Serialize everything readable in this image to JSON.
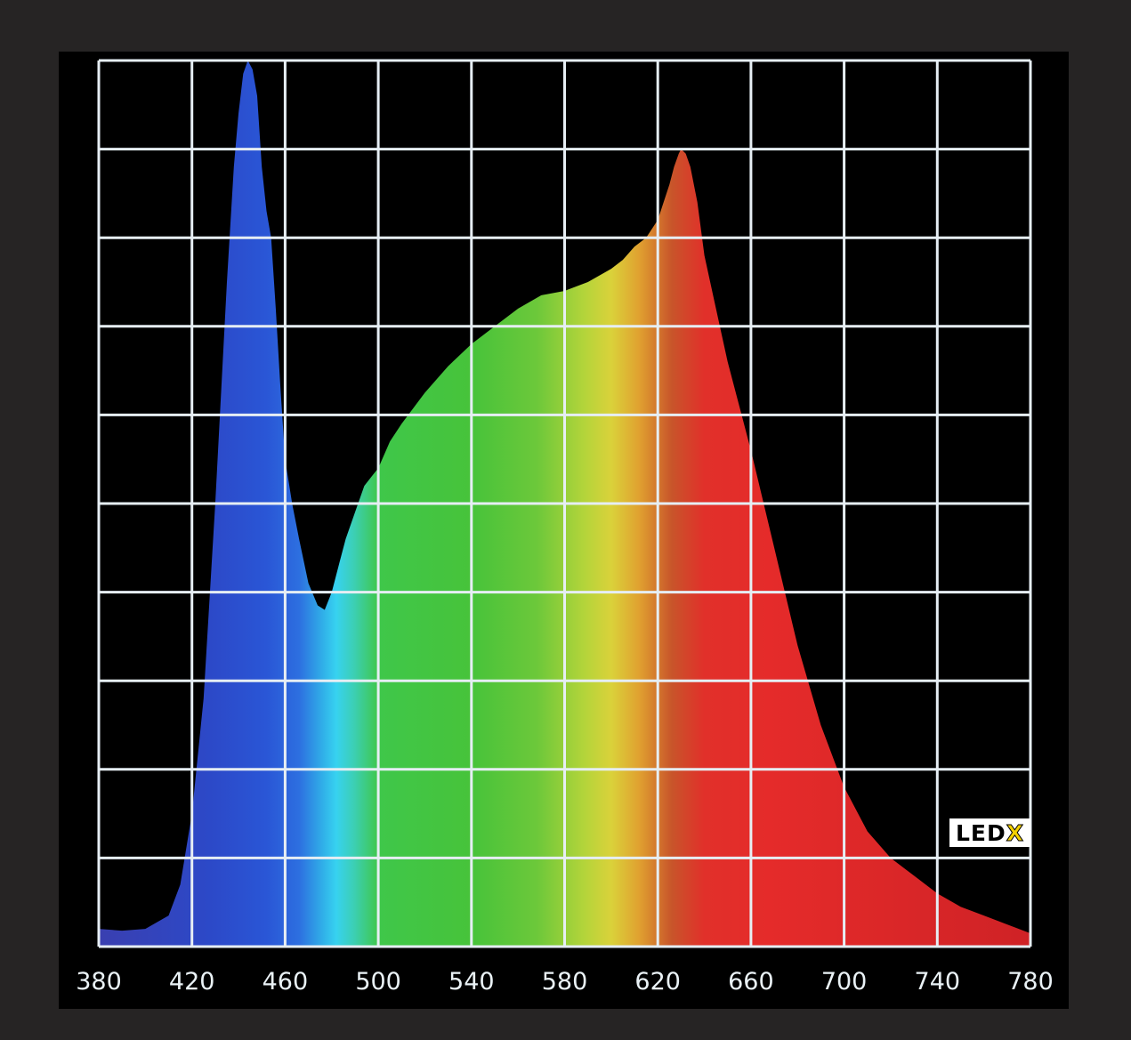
{
  "chart_data": {
    "type": "area",
    "title": "",
    "xlabel": "",
    "ylabel": "",
    "xlim": [
      380,
      780
    ],
    "ylim": [
      0,
      1
    ],
    "x_ticks": [
      "380",
      "420",
      "460",
      "500",
      "540",
      "580",
      "620",
      "660",
      "700",
      "740",
      "780"
    ],
    "grid": true,
    "y_gridlines": 10,
    "fill": "visible-spectrum gradient by wavelength",
    "series": [
      {
        "x": [
          380,
          390,
          400,
          410,
          415,
          420,
          425,
          430,
          435,
          438,
          440,
          442,
          444,
          446,
          448,
          450,
          452,
          454,
          456,
          458,
          460,
          463,
          466,
          470,
          474,
          477,
          480,
          483,
          486,
          490,
          494,
          497,
          500,
          505,
          510,
          520,
          530,
          540,
          550,
          560,
          570,
          580,
          590,
          600,
          605,
          610,
          615,
          620,
          625,
          627,
          629,
          630,
          632,
          634,
          637,
          640,
          645,
          650,
          655,
          660,
          670,
          680,
          690,
          700,
          710,
          720,
          730,
          740,
          750,
          760,
          770,
          780
        ],
        "y": [
          0.02,
          0.018,
          0.02,
          0.035,
          0.07,
          0.15,
          0.28,
          0.5,
          0.75,
          0.88,
          0.94,
          0.985,
          1.0,
          0.99,
          0.96,
          0.88,
          0.83,
          0.8,
          0.72,
          0.63,
          0.55,
          0.5,
          0.46,
          0.41,
          0.385,
          0.38,
          0.4,
          0.43,
          0.46,
          0.49,
          0.52,
          0.53,
          0.54,
          0.57,
          0.59,
          0.625,
          0.655,
          0.68,
          0.7,
          0.72,
          0.735,
          0.74,
          0.75,
          0.765,
          0.775,
          0.79,
          0.8,
          0.82,
          0.86,
          0.88,
          0.895,
          0.9,
          0.895,
          0.88,
          0.84,
          0.78,
          0.72,
          0.66,
          0.61,
          0.56,
          0.45,
          0.34,
          0.25,
          0.18,
          0.13,
          0.1,
          0.08,
          0.06,
          0.045,
          0.035,
          0.025,
          0.015
        ]
      }
    ]
  },
  "logo": {
    "text_led": "LED",
    "text_x": "X",
    "colors": {
      "background": "#ffffff",
      "led": "#000000",
      "x": "#f3d100"
    }
  },
  "colors": {
    "frame": "#262424",
    "screen": "#000000",
    "grid": "#e6eef4"
  }
}
